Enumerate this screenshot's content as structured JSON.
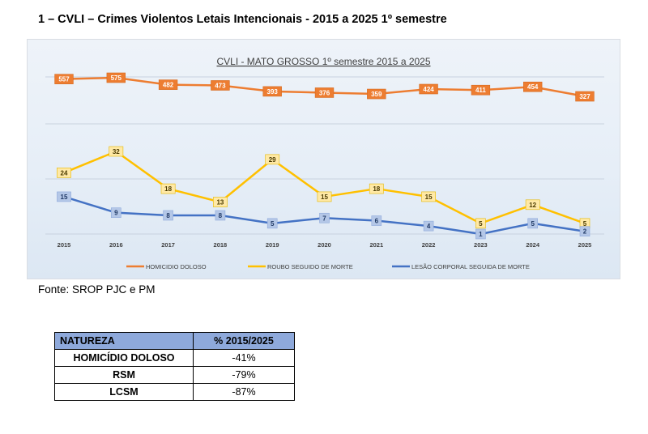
{
  "heading": "1 – CVLI – Crimes Violentos Letais Intencionais  - 2015 a 2025 1º semestre",
  "source": "Fonte: SROP PJC e PM",
  "colors": {
    "homicidio": "#ed7d31",
    "roubo": "#ffc000",
    "lesao": "#4472c4",
    "grid": "#c9d3df"
  },
  "chart_data": {
    "type": "line",
    "title": "CVLI - MATO GROSSO 1º semestre 2015 a 2025",
    "xlabel": "",
    "ylabel": "",
    "x": [
      "2015",
      "2016",
      "2017",
      "2018",
      "2019",
      "2020",
      "2021",
      "2022",
      "2023",
      "2024",
      "2025"
    ],
    "grid": true,
    "legend": "bottom",
    "series": [
      {
        "name": "HOMICIDIO DOLOSO",
        "color": "#ed7d31",
        "values": [
          557,
          575,
          482,
          473,
          393,
          376,
          359,
          424,
          411,
          454,
          327
        ]
      },
      {
        "name": "ROUBO SEGUIDO DE MORTE",
        "color": "#ffc000",
        "values": [
          24,
          32,
          18,
          13,
          29,
          15,
          18,
          15,
          5,
          12,
          5
        ]
      },
      {
        "name": "LESÃO CORPORAL SEGUIDA DE MORTE",
        "color": "#4472c4",
        "values": [
          15,
          9,
          8,
          8,
          5,
          7,
          6,
          4,
          1,
          5,
          2
        ]
      }
    ]
  },
  "table": {
    "headers": [
      "NATUREZA",
      "% 2015/2025"
    ],
    "rows": [
      [
        "HOMICÍDIO DOLOSO",
        "-41%"
      ],
      [
        "RSM",
        "-79%"
      ],
      [
        "LCSM",
        "-87%"
      ]
    ]
  }
}
